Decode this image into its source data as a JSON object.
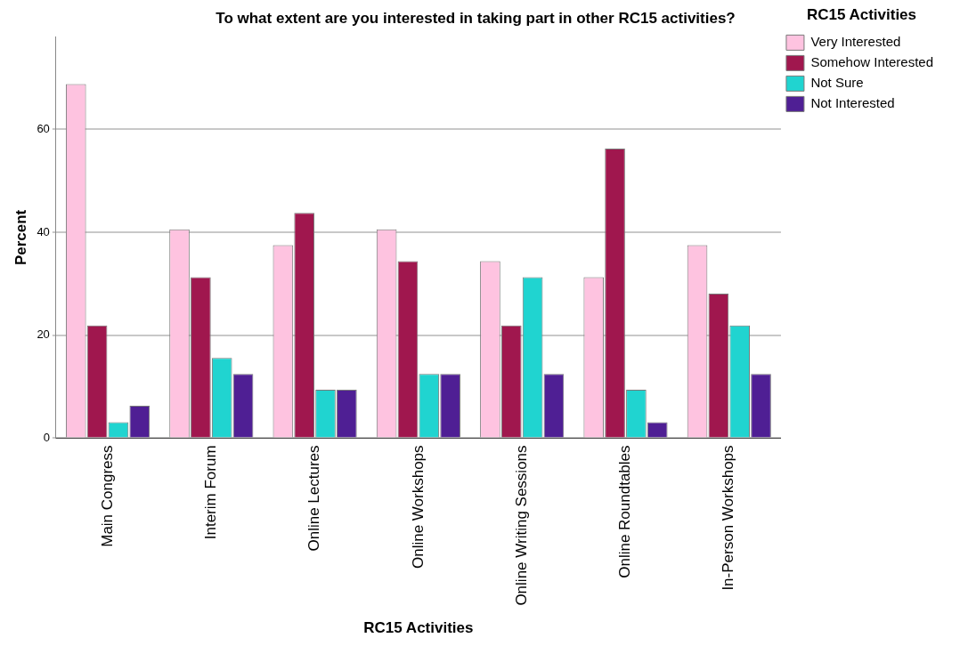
{
  "chart_data": {
    "type": "bar",
    "title": "To what extent are you interested in taking part in other RC15 activities?",
    "xlabel": "RC15 Activities",
    "ylabel": "Percent",
    "legend_title": "RC15 Activities",
    "categories": [
      "Main Congress",
      "Interim Forum",
      "Online Lectures",
      "Online Workshops",
      "Online Writing Sessions",
      "Online Roundtables",
      "In-Person Workshops"
    ],
    "series": [
      {
        "name": "Very Interested",
        "color": "#fec3e0",
        "values": [
          68.8,
          40.6,
          37.5,
          40.6,
          34.4,
          31.3,
          37.5
        ]
      },
      {
        "name": "Somehow Interested",
        "color": "#a0174e",
        "values": [
          21.9,
          31.3,
          43.8,
          34.4,
          21.9,
          56.3,
          28.1
        ]
      },
      {
        "name": "Not Sure",
        "color": "#20d4d0",
        "values": [
          3.1,
          15.6,
          9.4,
          12.5,
          31.3,
          9.4,
          21.9
        ]
      },
      {
        "name": "Not Interested",
        "color": "#4f1f94",
        "values": [
          6.3,
          12.5,
          9.4,
          12.5,
          12.5,
          3.1,
          12.5
        ]
      }
    ],
    "ylim": [
      0,
      78
    ],
    "yticks": [
      0,
      20,
      40,
      60
    ],
    "grid": "y",
    "legend": "top right"
  }
}
